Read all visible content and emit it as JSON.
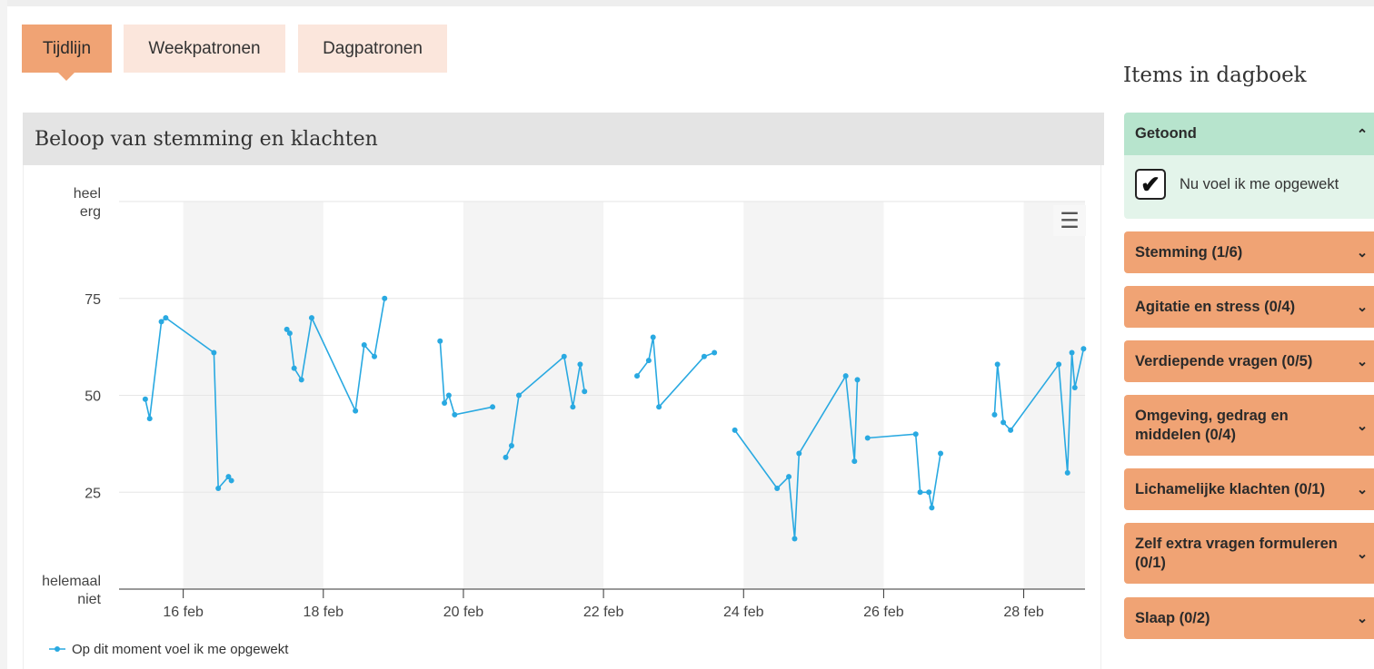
{
  "tabs": [
    {
      "label": "Tijdlijn",
      "active": true
    },
    {
      "label": "Weekpatronen",
      "active": false
    },
    {
      "label": "Dagpatronen",
      "active": false
    }
  ],
  "panel": {
    "title": "Beloop van stemming en klachten"
  },
  "sidebar": {
    "title": "Items in dagboek",
    "shown": {
      "label": "Getoond",
      "item_label": "Nu voel ik me opgewekt",
      "checked": true
    },
    "groups": [
      {
        "label": "Stemming (1/6)"
      },
      {
        "label": "Agitatie en stress (0/4)"
      },
      {
        "label": "Verdiepende vragen (0/5)"
      },
      {
        "label": "Omgeving, gedrag en middelen (0/4)"
      },
      {
        "label": "Lichamelijke klachten (0/1)"
      },
      {
        "label": "Zelf extra vragen formuleren (0/1)"
      },
      {
        "label": "Slaap (0/2)"
      }
    ]
  },
  "icons": {
    "menu": "hamburger-menu-icon",
    "collapse": "chevron-up-icon",
    "expand": "chevron-down-icon"
  },
  "colors": {
    "accent": "#f0a374",
    "tab_inactive": "#fbe6dc",
    "shown_header": "#b7e4cd",
    "series": "#29a9e1"
  },
  "chart_data": {
    "type": "line",
    "title": "",
    "ylim": [
      0,
      100
    ],
    "y_ticks": [
      {
        "value": 0,
        "label": "helemaal niet"
      },
      {
        "value": 25,
        "label": "25"
      },
      {
        "value": 50,
        "label": "50"
      },
      {
        "value": 75,
        "label": "75"
      },
      {
        "value": 100,
        "label": "heel erg"
      }
    ],
    "x_ticks": [
      "16 feb",
      "18 feb",
      "20 feb",
      "22 feb",
      "24 feb",
      "26 feb",
      "28 feb"
    ],
    "x_range": [
      "2024-02-15T02:00",
      "2024-02-28T21:00"
    ],
    "weekend_bands": [
      [
        "2024-02-16",
        "2024-02-18"
      ],
      [
        "2024-02-20",
        "2024-02-22"
      ],
      [
        "2024-02-24",
        "2024-02-26"
      ],
      [
        "2024-02-28",
        "2024-02-29"
      ]
    ],
    "legend": {
      "position": "bottom-left"
    },
    "series": [
      {
        "name": "Op dit moment voel ik me opgewekt",
        "segments": [
          [
            [
              "2024-02-15T11:00",
              49
            ],
            [
              "2024-02-15T12:30",
              44
            ],
            [
              "2024-02-15T16:30",
              69
            ],
            [
              "2024-02-15T18:00",
              70
            ],
            [
              "2024-02-16T10:30",
              61
            ],
            [
              "2024-02-16T12:00",
              26
            ],
            [
              "2024-02-16T15:30",
              29
            ],
            [
              "2024-02-16T16:30",
              28
            ]
          ],
          [
            [
              "2024-02-17T11:30",
              67
            ],
            [
              "2024-02-17T12:30",
              66
            ],
            [
              "2024-02-17T14:00",
              57
            ],
            [
              "2024-02-17T16:30",
              54
            ],
            [
              "2024-02-17T20:00",
              70
            ],
            [
              "2024-02-18T11:00",
              46
            ],
            [
              "2024-02-18T14:00",
              63
            ],
            [
              "2024-02-18T17:30",
              60
            ],
            [
              "2024-02-18T21:00",
              75
            ]
          ],
          [
            [
              "2024-02-19T16:00",
              64
            ],
            [
              "2024-02-19T17:30",
              48
            ],
            [
              "2024-02-19T19:00",
              50
            ],
            [
              "2024-02-19T21:00",
              45
            ],
            [
              "2024-02-20T10:00",
              47
            ]
          ],
          [
            [
              "2024-02-20T14:30",
              34
            ],
            [
              "2024-02-20T16:30",
              37
            ],
            [
              "2024-02-20T19:00",
              50
            ],
            [
              "2024-02-21T10:30",
              60
            ],
            [
              "2024-02-21T13:30",
              47
            ],
            [
              "2024-02-21T16:00",
              58
            ],
            [
              "2024-02-21T17:30",
              51
            ]
          ],
          [
            [
              "2024-02-22T11:30",
              55
            ],
            [
              "2024-02-22T15:30",
              59
            ],
            [
              "2024-02-22T17:00",
              65
            ],
            [
              "2024-02-22T19:00",
              47
            ],
            [
              "2024-02-23T10:30",
              60
            ],
            [
              "2024-02-23T14:00",
              61
            ]
          ],
          [
            [
              "2024-02-23T21:00",
              41
            ],
            [
              "2024-02-24T11:30",
              26
            ],
            [
              "2024-02-24T15:30",
              29
            ],
            [
              "2024-02-24T17:30",
              13
            ],
            [
              "2024-02-24T19:00",
              35
            ],
            [
              "2024-02-25T11:00",
              55
            ],
            [
              "2024-02-25T14:00",
              33
            ],
            [
              "2024-02-25T15:00",
              54
            ]
          ],
          [
            [
              "2024-02-25T18:30",
              39
            ],
            [
              "2024-02-26T11:00",
              40
            ],
            [
              "2024-02-26T12:30",
              25
            ],
            [
              "2024-02-26T15:30",
              25
            ],
            [
              "2024-02-26T16:30",
              21
            ],
            [
              "2024-02-26T19:30",
              35
            ]
          ],
          [
            [
              "2024-02-27T14:00",
              45
            ],
            [
              "2024-02-27T15:00",
              58
            ],
            [
              "2024-02-27T17:00",
              43
            ],
            [
              "2024-02-27T19:30",
              41
            ],
            [
              "2024-02-28T12:00",
              58
            ],
            [
              "2024-02-28T15:00",
              30
            ],
            [
              "2024-02-28T16:30",
              61
            ],
            [
              "2024-02-28T17:30",
              52
            ],
            [
              "2024-02-28T20:30",
              62
            ]
          ]
        ]
      }
    ]
  }
}
